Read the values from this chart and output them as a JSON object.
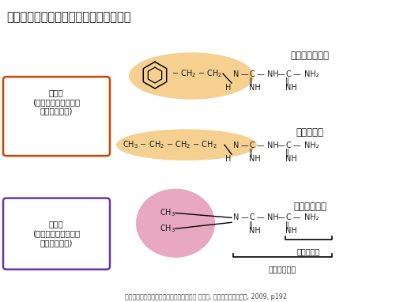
{
  "title": "図　ビグアナイド系薬剤の構造式の比較",
  "title_fontsize": 10.5,
  "background": "#ffffff",
  "lipid_box_color": "#cc4400",
  "water_box_color": "#6633aa",
  "lipid_label": "脂溶性\n(ミトコンドリア膜に\n結合しやすい)",
  "water_label": "水溶性\n(ミトコンドリア膜に\n結合しにくい)",
  "drug1_name": "フェンホルミン",
  "drug2_name": "ブホルミン",
  "drug3_name": "メトホルミン",
  "ellipse1_color": "#f5d090",
  "ellipse2_color": "#f5d090",
  "ellipse3_color": "#e8a8c0",
  "guanidine_label": "グアニジン",
  "biguanide_label": "ビグアナイド",
  "citation": "河盛隆造（編）：見直されたビグアナイド 改訂版, フジメディカル出版, 2009, p192",
  "text_color": "#1a1a1a",
  "chem_fontsize": 7.0,
  "label_fontsize": 7.5,
  "drug_name_fontsize": 8.5
}
